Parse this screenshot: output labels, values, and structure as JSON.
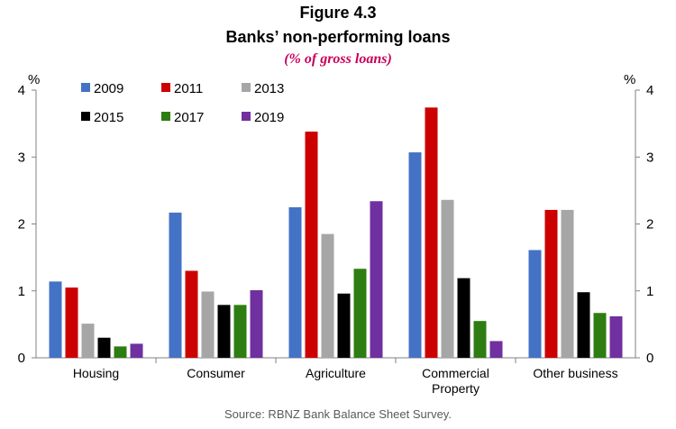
{
  "figure": {
    "title": "Figure 4.3",
    "subtitle": "Banks’ non-performing loans",
    "units": "(% of gross loans)",
    "source": "Source: RBNZ Bank Balance Sheet Survey."
  },
  "chart_data": {
    "type": "bar",
    "title": "Banks’ non-performing loans",
    "categories": [
      "Housing",
      "Consumer",
      "Agriculture",
      "Commercial Property",
      "Other business"
    ],
    "category_lines": [
      [
        "Housing"
      ],
      [
        "Consumer"
      ],
      [
        "Agriculture"
      ],
      [
        "Commercial",
        "Property"
      ],
      [
        "Other business"
      ]
    ],
    "series": [
      {
        "name": "2009",
        "color": "#4472c4",
        "values": [
          1.14,
          2.17,
          2.25,
          3.07,
          1.61
        ]
      },
      {
        "name": "2011",
        "color": "#cc0000",
        "values": [
          1.05,
          1.3,
          3.38,
          3.74,
          2.21
        ]
      },
      {
        "name": "2013",
        "color": "#a6a6a6",
        "values": [
          0.51,
          0.99,
          1.85,
          2.36,
          2.21
        ]
      },
      {
        "name": "2015",
        "color": "#000000",
        "values": [
          0.3,
          0.79,
          0.96,
          1.19,
          0.98
        ]
      },
      {
        "name": "2017",
        "color": "#2e7d12",
        "values": [
          0.17,
          0.79,
          1.33,
          0.55,
          0.67
        ]
      },
      {
        "name": "2019",
        "color": "#7030a0",
        "values": [
          0.21,
          1.01,
          2.34,
          0.25,
          0.62
        ]
      }
    ],
    "ylim": [
      0,
      4
    ],
    "yticks": [
      0,
      1,
      2,
      3,
      4
    ],
    "left_axis_unit": "%",
    "right_axis_unit": "%",
    "legend_position": "top-left",
    "grid": false
  }
}
